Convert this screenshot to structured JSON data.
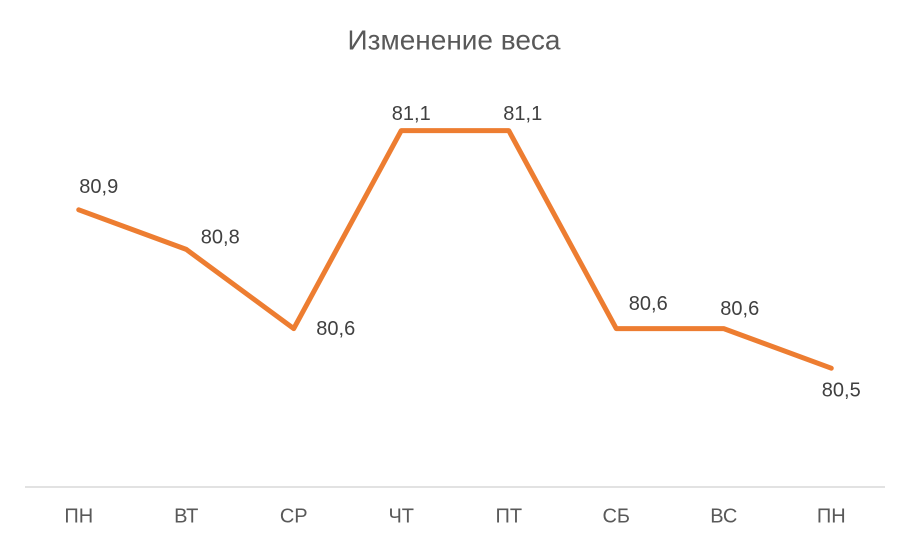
{
  "chart_data": {
    "type": "line",
    "title": "Изменение веса",
    "categories": [
      "ПН",
      "ВТ",
      "СР",
      "ЧТ",
      "ПТ",
      "СБ",
      "ВС",
      "ПН"
    ],
    "values": [
      80.9,
      80.8,
      80.6,
      81.1,
      81.1,
      80.6,
      80.6,
      80.5
    ],
    "value_labels": [
      "80,9",
      "80,8",
      "80,6",
      "81,1",
      "81,1",
      "80,6",
      "80,6",
      "80,5"
    ],
    "color": "#ED7D31",
    "ylim": [
      80.2,
      81.2
    ]
  }
}
